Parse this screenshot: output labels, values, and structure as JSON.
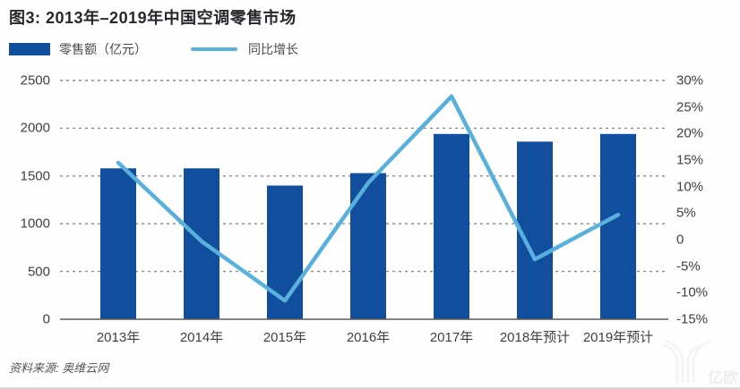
{
  "header": {
    "title": "图3: 2013年–2019年中国空调零售市场"
  },
  "legend": [
    {
      "label": "零售额（亿元）",
      "swatch": "bar",
      "color": "#124E9E"
    },
    {
      "label": "同比增长",
      "swatch": "line",
      "color": "#58B0DC"
    }
  ],
  "source": {
    "text": "资料来源: 奥维云网"
  },
  "watermark": {
    "text": "亿欧"
  },
  "chart_data": {
    "type": "bar+line combo",
    "title": "图3: 2013年–2019年中国空调零售市场",
    "categories": [
      "2013年",
      "2014年",
      "2015年",
      "2016年",
      "2017年",
      "2018年预计",
      "2019年预计"
    ],
    "series": [
      {
        "name": "零售额（亿元）",
        "type": "bar",
        "axis": "left",
        "color": "#124E9E",
        "values": [
          1580,
          1580,
          1400,
          1530,
          1940,
          1860,
          1940
        ]
      },
      {
        "name": "同比增长",
        "type": "line",
        "axis": "right",
        "color": "#58B0DC",
        "values": [
          14.5,
          -0.3,
          -11.5,
          10.7,
          27,
          -3.7,
          4.7
        ]
      }
    ],
    "left_axis": {
      "label": "零售额（亿元）",
      "min": 0,
      "max": 2500,
      "ticks": [
        "2500",
        "2000",
        "1500",
        "1000",
        "500",
        "0"
      ]
    },
    "right_axis": {
      "label": "同比增长(%)",
      "min": -15,
      "max": 30,
      "ticks": [
        "30%",
        "25%",
        "20%",
        "15%",
        "10%",
        "5%",
        "0",
        "-5%",
        "-10%",
        "-15%"
      ]
    },
    "grid": "horizontal dashed, aligned to left axis",
    "legend_position": "top-left"
  }
}
